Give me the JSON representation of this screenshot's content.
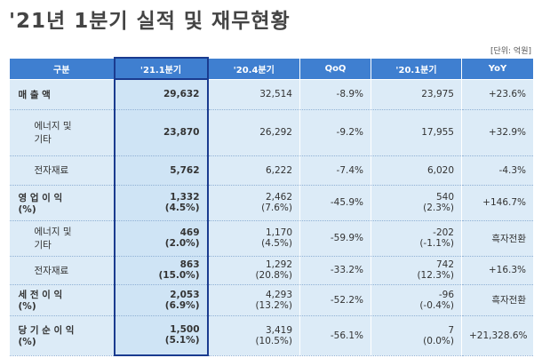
{
  "header": {
    "title": "'21년 1분기 실적 및 재무현황",
    "unit": "[단위: 억원]"
  },
  "table": {
    "columns": [
      "구분",
      "'21.1분기",
      "'20.4분기",
      "QoQ",
      "'20.1분기",
      "YoY"
    ],
    "rows": [
      [
        [
          "매 출 액"
        ],
        [
          "29,632"
        ],
        [
          "32,514"
        ],
        [
          "-8.9%"
        ],
        [
          "23,975"
        ],
        [
          "+23.6%"
        ]
      ],
      [
        [
          "에너지 및",
          "기타"
        ],
        [
          "23,870"
        ],
        [
          "26,292"
        ],
        [
          "-9.2%"
        ],
        [
          "17,955"
        ],
        [
          "+32.9%"
        ]
      ],
      [
        [
          "전자재료"
        ],
        [
          "5,762"
        ],
        [
          "6,222"
        ],
        [
          "-7.4%"
        ],
        [
          "6,020"
        ],
        [
          "-4.3%"
        ]
      ],
      [
        [
          "영 업 이 익",
          "(%)"
        ],
        [
          "1,332",
          "(4.5%)"
        ],
        [
          "2,462",
          "(7.6%)"
        ],
        [
          "-45.9%"
        ],
        [
          "540",
          "(2.3%)"
        ],
        [
          "+146.7%"
        ]
      ],
      [
        [
          "에너지 및",
          "기타"
        ],
        [
          "469",
          "(2.0%)"
        ],
        [
          "1,170",
          "(4.5%)"
        ],
        [
          "-59.9%"
        ],
        [
          "-202",
          "(-1.1%)"
        ],
        [
          "흑자전환"
        ]
      ],
      [
        [
          "전자재료"
        ],
        [
          "863",
          "(15.0%)"
        ],
        [
          "1,292",
          "(20.8%)"
        ],
        [
          "-33.2%"
        ],
        [
          "742",
          "(12.3%)"
        ],
        [
          "+16.3%"
        ]
      ],
      [
        [
          "세 전 이 익",
          "(%)"
        ],
        [
          "2,053",
          "(6.9%)"
        ],
        [
          "4,293",
          "(13.2%)"
        ],
        [
          "-52.2%"
        ],
        [
          "-96",
          "(-0.4%)"
        ],
        [
          "흑자전환"
        ]
      ],
      [
        [
          "당 기 순 이 익",
          "(%)"
        ],
        [
          "1,500",
          "(5.1%)"
        ],
        [
          "3,419",
          "(10.5%)"
        ],
        [
          "-56.1%"
        ],
        [
          "7",
          "(0.0%)"
        ],
        [
          "+21,328.6%"
        ]
      ]
    ]
  }
}
